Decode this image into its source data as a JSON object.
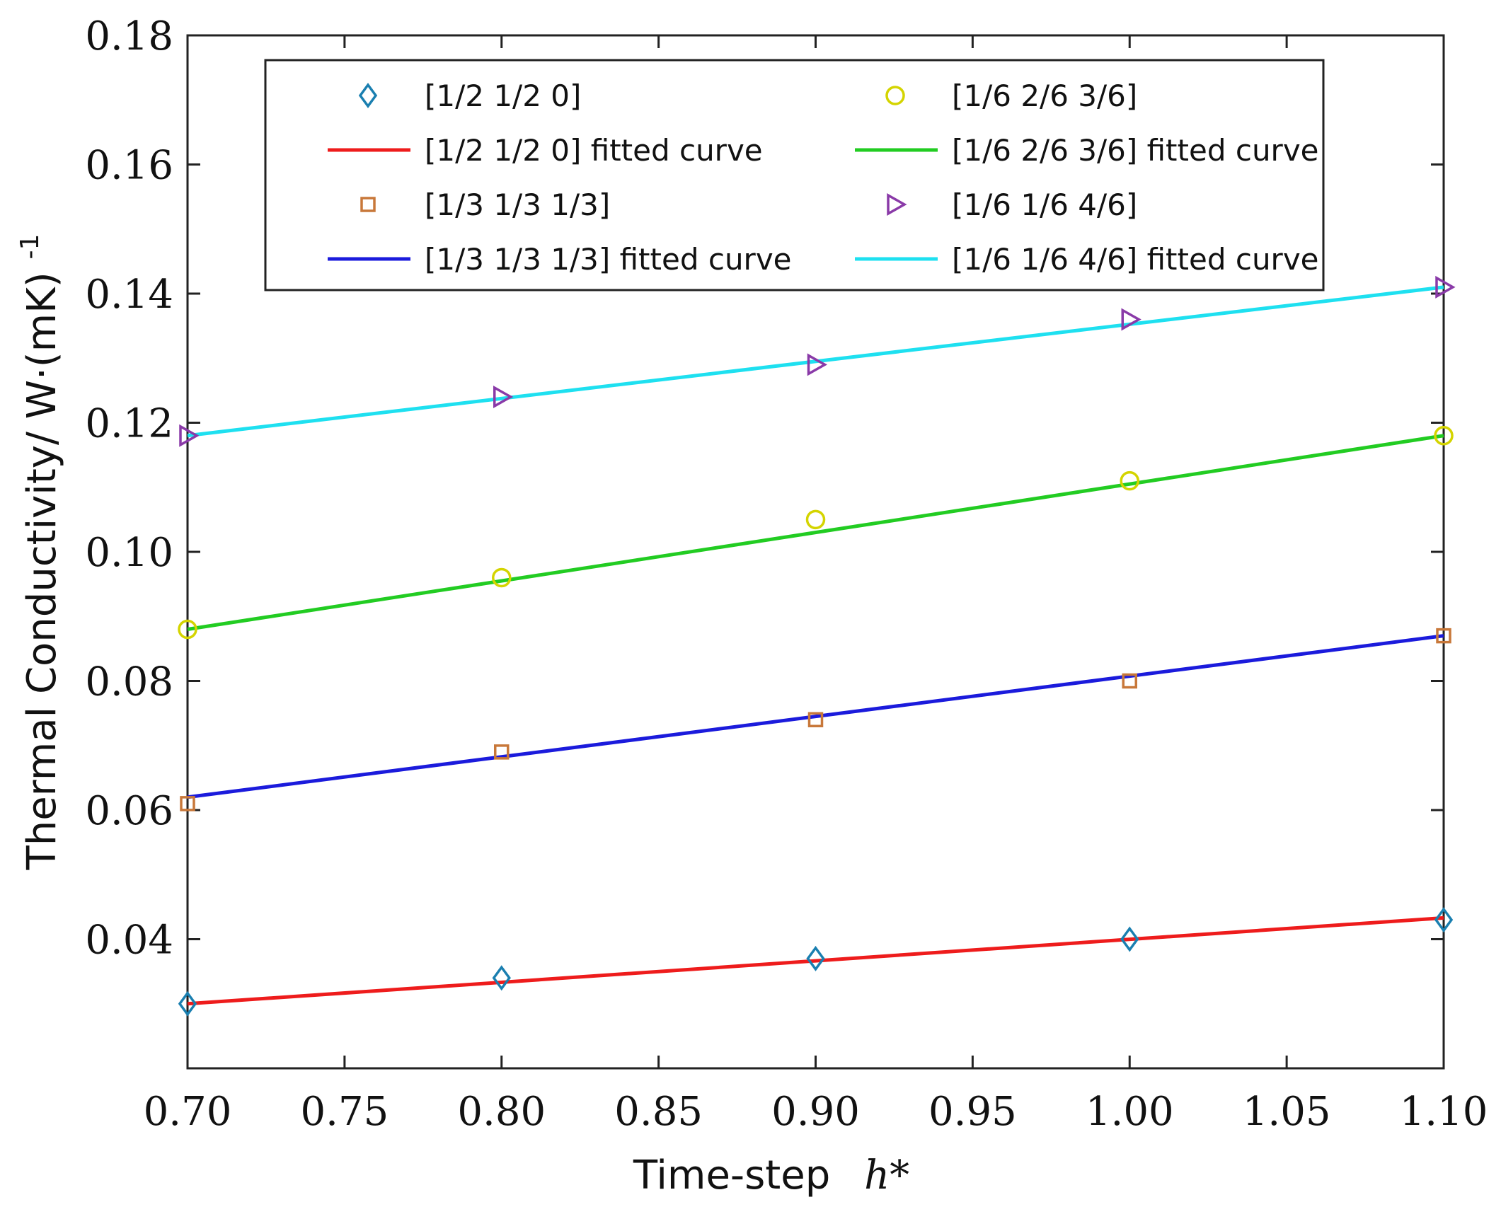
{
  "chart_data": {
    "type": "line",
    "title": "",
    "xlabel": "Time-step",
    "xlabel_symbol": "h*",
    "ylabel": "Thermal Conductivity/ W·(mK)",
    "ylabel_superscript": "-1",
    "xlim": [
      0.7,
      1.1
    ],
    "ylim": [
      0.02,
      0.18
    ],
    "xticks": [
      "0.70",
      "0.75",
      "0.80",
      "0.85",
      "0.90",
      "0.95",
      "1.00",
      "1.05",
      "1.10"
    ],
    "yticks": [
      "0.04",
      "0.06",
      "0.08",
      "0.10",
      "0.12",
      "0.14",
      "0.16",
      "0.18"
    ],
    "xtick_values": [
      0.7,
      0.75,
      0.8,
      0.85,
      0.9,
      0.95,
      1.0,
      1.05,
      1.1
    ],
    "ytick_values": [
      0.04,
      0.06,
      0.08,
      0.1,
      0.12,
      0.14,
      0.16,
      0.18
    ],
    "x": [
      0.7,
      0.8,
      0.9,
      1.0,
      1.1
    ],
    "legend_position": "top",
    "series": [
      {
        "name": "[1/2 1/2 0]",
        "marker": "diamond",
        "marker_color": "#1a7fb0",
        "values": [
          0.03,
          0.034,
          0.037,
          0.04,
          0.043
        ],
        "fit_name": "[1/2 1/2 0] fitted curve",
        "fit_color": "#ee1c1c",
        "fit": [
          0.03,
          0.0433
        ]
      },
      {
        "name": "[1/3 1/3 1/3]",
        "marker": "square",
        "marker_color": "#c8783a",
        "values": [
          0.061,
          0.069,
          0.074,
          0.08,
          0.087
        ],
        "fit_name": "[1/3 1/3 1/3] fitted curve",
        "fit_color": "#1b1bdc",
        "fit": [
          0.062,
          0.087
        ]
      },
      {
        "name": "[1/6 2/6 3/6]",
        "marker": "circle",
        "marker_color": "#d4d400",
        "values": [
          0.088,
          0.096,
          0.105,
          0.111,
          0.118
        ],
        "fit_name": "[1/6 2/6 3/6] fitted curve",
        "fit_color": "#22cc22",
        "fit": [
          0.088,
          0.118
        ]
      },
      {
        "name": "[1/6 1/6 4/6]",
        "marker": "triangle-right",
        "marker_color": "#8a3aa8",
        "values": [
          0.118,
          0.124,
          0.129,
          0.136,
          0.141
        ],
        "fit_name": "[1/6 1/6 4/6] fitted curve",
        "fit_color": "#1ee0f0",
        "fit": [
          0.118,
          0.141
        ]
      }
    ]
  }
}
